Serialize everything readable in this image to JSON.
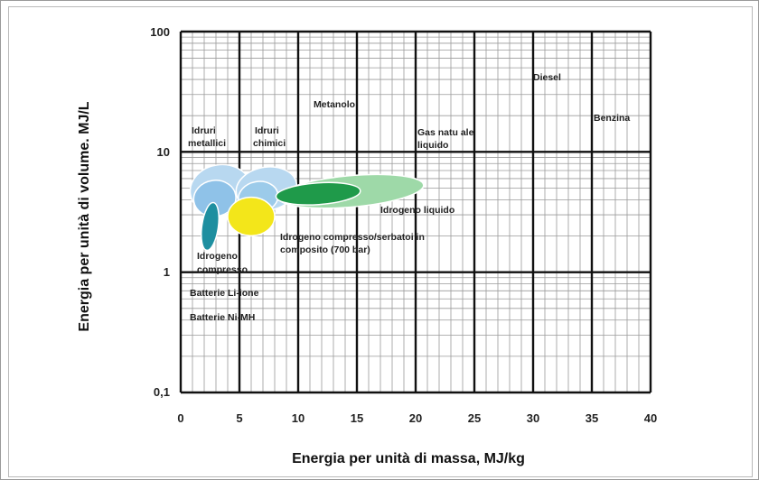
{
  "chart_data": {
    "type": "scatter",
    "title": "",
    "xlabel": "Energia per unità di massa, MJ/kg",
    "ylabel": "Energia per unità di volume. MJ/L",
    "x_ticks": [
      "0",
      "5",
      "10",
      "15",
      "20",
      "25",
      "30",
      "35",
      "40"
    ],
    "y_ticks": [
      "0,1",
      "1",
      "10",
      "100"
    ],
    "xlim": [
      0,
      40
    ],
    "ylim": [
      0.1,
      100
    ],
    "y_scale": "log",
    "grid": true,
    "points": [
      {
        "label": "Diesel",
        "x": 33,
        "y": 31,
        "color": "#3aa6a0",
        "rx": 0.7,
        "ry_log": 0.055
      },
      {
        "label": "Benzina",
        "x": 36.5,
        "y": 27,
        "color": "#e84a2c",
        "rx": 0.7,
        "ry_log": 0.055
      },
      {
        "label": "Metanolo",
        "x": 15,
        "y": 17,
        "color": "#a47ab5",
        "rx": 0.7,
        "ry_log": 0.05
      },
      {
        "label": "Gas naturale liquido",
        "x": 18,
        "y": 14,
        "color": "#d8c9a6",
        "rx": 1.2,
        "ry_log": 0.07
      },
      {
        "label": "Batterie Li-ione",
        "x": 0.3,
        "y": 0.7,
        "color": "#f0a840",
        "rx": 0.45,
        "ry_log": 0.035
      },
      {
        "label": "Batterie Ni-MH",
        "x": 0.3,
        "y": 0.5,
        "color": "#2f9bd6",
        "rx": 0.45,
        "ry_log": 0.035
      }
    ],
    "regions": [
      {
        "label": "Idruri metallici",
        "x": 3.2,
        "y": 4.5,
        "color": "#b8d8f0"
      },
      {
        "label": "Idruri chimici",
        "x": 7.0,
        "y": 4.5,
        "color": "#b8d8f0"
      },
      {
        "label": "Idrogeno liquido",
        "x": 14.5,
        "y": 4.7,
        "color": "#8fd39c"
      },
      {
        "label": "Idrogeno compresso/serbatoi in composito (700 bar)",
        "x": 6.0,
        "y": 2.9,
        "color": "#f3e61a"
      },
      {
        "label": "Idrogeno compresso",
        "x": 2.5,
        "y": 2.4,
        "color": "#1e8fa0"
      }
    ],
    "annotations": [
      {
        "text": "Diesel"
      },
      {
        "text": "Benzina"
      },
      {
        "text": "Metanolo"
      },
      {
        "text": "Gas natu ale"
      },
      {
        "text": "liquido"
      },
      {
        "text": "Idruri"
      },
      {
        "text": "metallici"
      },
      {
        "text": "Idruri"
      },
      {
        "text": "chimici"
      },
      {
        "text": "Idrogeno liquido"
      },
      {
        "text": "Idrogeno compresso/serbatoi in"
      },
      {
        "text": "composito (700 bar)"
      },
      {
        "text": "Idrogeno"
      },
      {
        "text": "compresso"
      },
      {
        "text": "Batterie Li-ione"
      },
      {
        "text": "Batterie Ni-MH"
      }
    ]
  }
}
